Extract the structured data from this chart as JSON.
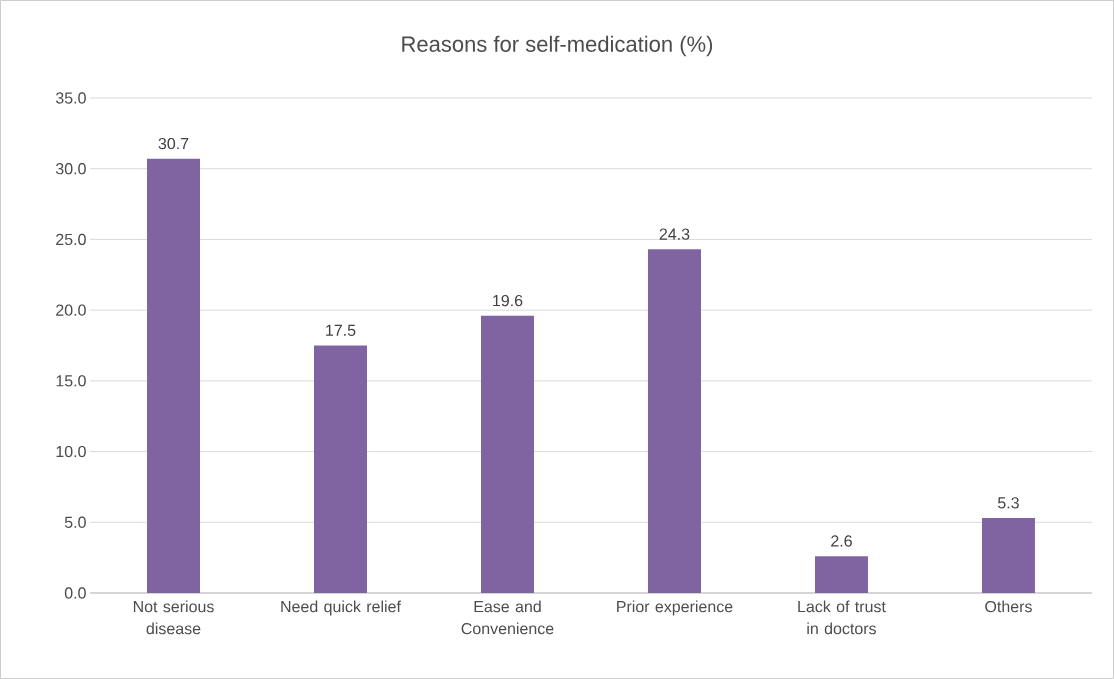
{
  "chart_data": {
    "type": "bar",
    "title": "Reasons for self-medication (%)",
    "categories": [
      "Not serious disease",
      "Need quick relief",
      "Ease and Convenience",
      "Prior experience",
      "Lack of trust in doctors",
      "Others"
    ],
    "values": [
      30.7,
      17.5,
      19.6,
      24.3,
      2.6,
      5.3
    ],
    "color": "#8064a2",
    "ylim": [
      0,
      35
    ],
    "yticks": [
      {
        "value": 0,
        "label": "0.0"
      },
      {
        "value": 5,
        "label": "5.0"
      },
      {
        "value": 10,
        "label": "10.0"
      },
      {
        "value": 15,
        "label": "15.0"
      },
      {
        "value": 20,
        "label": "20.0"
      },
      {
        "value": 25,
        "label": "25.0"
      },
      {
        "value": 30,
        "label": "30.0"
      },
      {
        "value": 35,
        "label": "35.0"
      }
    ],
    "grid": "y",
    "data_labels": true
  }
}
